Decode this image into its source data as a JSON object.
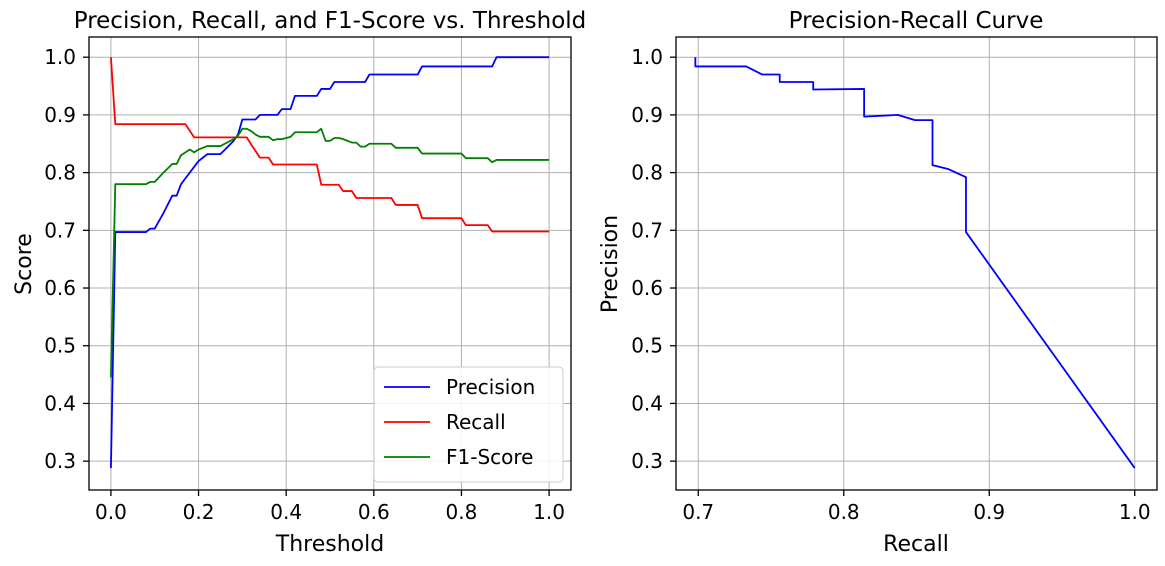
{
  "chart_data": [
    {
      "type": "line",
      "title": "Precision, Recall, and F1-Score vs. Threshold",
      "xlabel": "Threshold",
      "ylabel": "Score",
      "xlim": [
        -0.05,
        1.05
      ],
      "ylim": [
        0.25,
        1.035
      ],
      "xticks": [
        0.0,
        0.2,
        0.4,
        0.6,
        0.8,
        1.0
      ],
      "xtick_labels": [
        "0.0",
        "0.2",
        "0.4",
        "0.6",
        "0.8",
        "1.0"
      ],
      "yticks": [
        0.3,
        0.4,
        0.5,
        0.6,
        0.7,
        0.8,
        0.9,
        1.0
      ],
      "ytick_labels": [
        "0.3",
        "0.4",
        "0.5",
        "0.6",
        "0.7",
        "0.8",
        "0.9",
        "1.0"
      ],
      "grid": true,
      "legend": "lower-right",
      "series": [
        {
          "name": "Precision",
          "color": "#0000ff",
          "x": [
            0.0,
            0.01,
            0.02,
            0.08,
            0.09,
            0.1,
            0.12,
            0.14,
            0.15,
            0.16,
            0.17,
            0.18,
            0.19,
            0.2,
            0.22,
            0.25,
            0.28,
            0.29,
            0.3,
            0.33,
            0.34,
            0.37,
            0.38,
            0.39,
            0.41,
            0.42,
            0.47,
            0.48,
            0.49,
            0.5,
            0.51,
            0.55,
            0.57,
            0.58,
            0.59,
            0.6,
            0.65,
            0.7,
            0.71,
            0.86,
            0.87,
            0.88,
            1.0
          ],
          "y": [
            0.288,
            0.697,
            0.697,
            0.697,
            0.703,
            0.703,
            0.73,
            0.76,
            0.76,
            0.78,
            0.79,
            0.8,
            0.81,
            0.82,
            0.832,
            0.832,
            0.855,
            0.866,
            0.892,
            0.892,
            0.9,
            0.9,
            0.9,
            0.91,
            0.91,
            0.933,
            0.933,
            0.945,
            0.945,
            0.945,
            0.957,
            0.957,
            0.957,
            0.957,
            0.97,
            0.97,
            0.97,
            0.97,
            0.984,
            0.984,
            0.984,
            1.0,
            1.0
          ]
        },
        {
          "name": "Recall",
          "color": "#ff0000",
          "x": [
            0.0,
            0.01,
            0.02,
            0.17,
            0.19,
            0.2,
            0.31,
            0.32,
            0.34,
            0.36,
            0.37,
            0.39,
            0.47,
            0.48,
            0.52,
            0.53,
            0.55,
            0.56,
            0.57,
            0.64,
            0.65,
            0.7,
            0.71,
            0.8,
            0.81,
            0.86,
            0.87,
            1.0
          ],
          "y": [
            1.0,
            0.884,
            0.884,
            0.884,
            0.861,
            0.861,
            0.861,
            0.849,
            0.826,
            0.826,
            0.814,
            0.814,
            0.814,
            0.779,
            0.779,
            0.768,
            0.768,
            0.756,
            0.756,
            0.756,
            0.744,
            0.744,
            0.721,
            0.721,
            0.709,
            0.709,
            0.698,
            0.698
          ]
        },
        {
          "name": "F1-Score",
          "color": "#008000",
          "x": [
            0.0,
            0.01,
            0.02,
            0.08,
            0.09,
            0.1,
            0.12,
            0.14,
            0.15,
            0.16,
            0.17,
            0.18,
            0.19,
            0.2,
            0.22,
            0.25,
            0.28,
            0.29,
            0.3,
            0.31,
            0.32,
            0.33,
            0.34,
            0.36,
            0.37,
            0.38,
            0.39,
            0.41,
            0.42,
            0.47,
            0.48,
            0.49,
            0.5,
            0.51,
            0.52,
            0.53,
            0.55,
            0.56,
            0.57,
            0.58,
            0.59,
            0.6,
            0.64,
            0.65,
            0.7,
            0.71,
            0.8,
            0.81,
            0.86,
            0.87,
            0.88,
            1.0
          ],
          "y": [
            0.445,
            0.78,
            0.78,
            0.78,
            0.784,
            0.784,
            0.8,
            0.815,
            0.815,
            0.83,
            0.835,
            0.84,
            0.835,
            0.84,
            0.846,
            0.846,
            0.858,
            0.864,
            0.876,
            0.876,
            0.872,
            0.866,
            0.862,
            0.862,
            0.856,
            0.858,
            0.858,
            0.862,
            0.87,
            0.87,
            0.876,
            0.855,
            0.855,
            0.86,
            0.86,
            0.858,
            0.852,
            0.852,
            0.845,
            0.845,
            0.85,
            0.85,
            0.85,
            0.843,
            0.843,
            0.833,
            0.833,
            0.825,
            0.825,
            0.818,
            0.822,
            0.822
          ]
        }
      ]
    },
    {
      "type": "line",
      "title": "Precision-Recall Curve",
      "xlabel": "Recall",
      "ylabel": "Precision",
      "xlim": [
        0.6847,
        1.0153
      ],
      "ylim": [
        0.25,
        1.035
      ],
      "xticks": [
        0.7,
        0.8,
        0.9,
        1.0
      ],
      "xtick_labels": [
        "0.7",
        "0.8",
        "0.9",
        "1.0"
      ],
      "yticks": [
        0.3,
        0.4,
        0.5,
        0.6,
        0.7,
        0.8,
        0.9,
        1.0
      ],
      "ytick_labels": [
        "0.3",
        "0.4",
        "0.5",
        "0.6",
        "0.7",
        "0.8",
        "0.9",
        "1.0"
      ],
      "grid": true,
      "legend": "none",
      "series": [
        {
          "color": "#0000ff",
          "x": [
            0.698,
            0.698,
            0.733,
            0.744,
            0.756,
            0.756,
            0.779,
            0.779,
            0.814,
            0.814,
            0.837,
            0.849,
            0.861,
            0.861,
            0.872,
            0.884,
            0.884,
            1.0
          ],
          "y": [
            1.0,
            0.984,
            0.984,
            0.97,
            0.97,
            0.957,
            0.957,
            0.944,
            0.945,
            0.897,
            0.9,
            0.891,
            0.891,
            0.813,
            0.806,
            0.792,
            0.697,
            0.288
          ]
        }
      ]
    }
  ]
}
